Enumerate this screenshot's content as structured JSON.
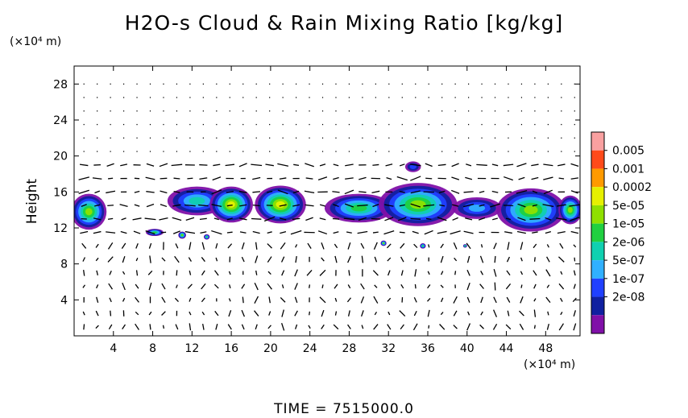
{
  "chart_data": {
    "type": "heatmap",
    "title": "H2O-s Cloud & Rain Mixing Ratio [kg/kg]",
    "ylabel": "Height",
    "y_unit": "(×10⁴ m)",
    "x_unit": "(×10⁴ m)",
    "xlim": [
      0,
      51.5
    ],
    "ylim": [
      0,
      30
    ],
    "x_ticks": [
      4,
      8,
      12,
      16,
      20,
      24,
      28,
      32,
      36,
      40,
      44,
      48
    ],
    "y_ticks": [
      4,
      8,
      12,
      16,
      20,
      24,
      28
    ],
    "colorbar": {
      "labels": [
        "0.005",
        "0.001",
        "0.0002",
        "5e-05",
        "1e-05",
        "2e-06",
        "5e-07",
        "1e-07",
        "2e-08"
      ],
      "colors": [
        "#f9a0a0",
        "#ff4a1a",
        "#ff9a00",
        "#e6f000",
        "#8fe000",
        "#20d040",
        "#10d0b0",
        "#30b0ff",
        "#2040ff",
        "#1020a0",
        "#8010a8"
      ]
    },
    "cloud_regions": [
      {
        "x": 1.5,
        "y": 13.8,
        "rx": 1.8,
        "ry": 2.0,
        "level": 7
      },
      {
        "x": 12.5,
        "y": 15.0,
        "rx": 3.0,
        "ry": 1.6,
        "level": 5
      },
      {
        "x": 16.0,
        "y": 14.6,
        "rx": 2.2,
        "ry": 2.0,
        "level": 8
      },
      {
        "x": 21.0,
        "y": 14.6,
        "rx": 2.6,
        "ry": 2.1,
        "level": 8
      },
      {
        "x": 29.0,
        "y": 14.2,
        "rx": 3.5,
        "ry": 1.6,
        "level": 6
      },
      {
        "x": 35.0,
        "y": 14.6,
        "rx": 4.0,
        "ry": 2.4,
        "level": 7
      },
      {
        "x": 41.0,
        "y": 14.2,
        "rx": 2.5,
        "ry": 1.2,
        "level": 4
      },
      {
        "x": 46.5,
        "y": 14.0,
        "rx": 3.5,
        "ry": 2.4,
        "level": 7
      },
      {
        "x": 50.5,
        "y": 14.0,
        "rx": 1.2,
        "ry": 1.6,
        "level": 7
      },
      {
        "x": 8.2,
        "y": 11.5,
        "rx": 0.9,
        "ry": 0.4,
        "level": 6
      },
      {
        "x": 11.0,
        "y": 11.2,
        "rx": 0.4,
        "ry": 0.4,
        "level": 7
      },
      {
        "x": 13.5,
        "y": 11.0,
        "rx": 0.3,
        "ry": 0.3,
        "level": 6
      },
      {
        "x": 34.5,
        "y": 18.8,
        "rx": 0.8,
        "ry": 0.6,
        "level": 3
      },
      {
        "x": 31.5,
        "y": 10.3,
        "rx": 0.3,
        "ry": 0.3,
        "level": 7
      },
      {
        "x": 35.5,
        "y": 10.0,
        "rx": 0.3,
        "ry": 0.3,
        "level": 6
      },
      {
        "x": 39.8,
        "y": 10.0,
        "rx": 0.2,
        "ry": 0.2,
        "level": 6
      }
    ]
  },
  "footer": "TIME  =  7515000.0"
}
